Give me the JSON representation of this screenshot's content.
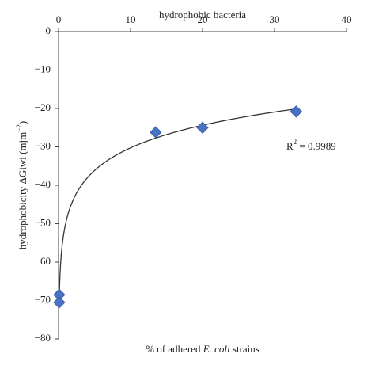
{
  "chart_data": {
    "type": "scatter",
    "title": "hydrophobic bacteria",
    "x_label": [
      "% of adhered ",
      "E. coli",
      " strains"
    ],
    "y_label": [
      "hydrophobicity ΔGiwi (mjm",
      "−2",
      ")"
    ],
    "annotation": [
      "R",
      "2",
      " = 0.9989"
    ],
    "x": [
      0.1,
      0.1,
      13.5,
      20,
      33
    ],
    "values": [
      -68.5,
      -70.5,
      -26.2,
      -25,
      -20.8
    ],
    "color": "#4a72c4",
    "trendline": "logarithmic",
    "xlim": [
      0,
      40
    ],
    "xticks": [
      0,
      10,
      20,
      30,
      40
    ],
    "ylim": [
      -80,
      0
    ],
    "yticks": [
      {
        "value": -80,
        "label": "−80"
      },
      {
        "value": -70,
        "label": "−70"
      },
      {
        "value": -60,
        "label": "−60"
      },
      {
        "value": -50,
        "label": "−50"
      },
      {
        "value": -40,
        "label": "−40"
      },
      {
        "value": -30,
        "label": "−30"
      },
      {
        "value": -20,
        "label": "−20"
      },
      {
        "value": -10,
        "label": "−10"
      },
      0
    ]
  }
}
